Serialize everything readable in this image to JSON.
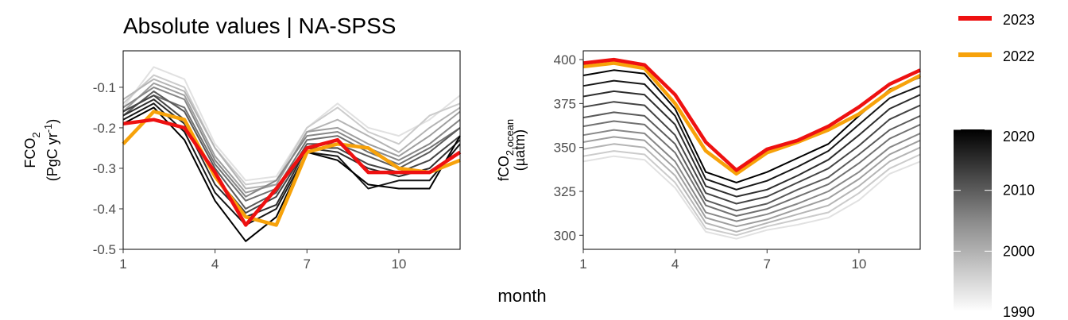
{
  "title": "Absolute values | NA-SPSS",
  "shared_xlabel": "month",
  "chart_data": [
    {
      "type": "line",
      "ylabel_main": "FCO",
      "ylabel_main_sub": "2",
      "ylabel_unit_pre": "(PgC yr",
      "ylabel_unit_sup": "-1",
      "ylabel_unit_post": ")",
      "xlim": [
        1,
        12
      ],
      "ylim": [
        -0.5,
        -0.01
      ],
      "x_ticks": [
        1,
        4,
        7,
        10
      ],
      "y_ticks": [
        -0.5,
        -0.4,
        -0.3,
        -0.2,
        -0.1
      ],
      "y_tick_labels": [
        "-0.5",
        "-0.4",
        "-0.3",
        "-0.2",
        "-0.1"
      ],
      "x": [
        1,
        2,
        3,
        4,
        5,
        6,
        7,
        8,
        9,
        10,
        11,
        12
      ],
      "background_series": [
        {
          "year": 1990,
          "values": [
            -0.15,
            -0.05,
            -0.08,
            -0.24,
            -0.33,
            -0.32,
            -0.2,
            -0.14,
            -0.2,
            -0.22,
            -0.18,
            -0.12
          ]
        },
        {
          "year": 1993,
          "values": [
            -0.14,
            -0.07,
            -0.1,
            -0.25,
            -0.34,
            -0.33,
            -0.2,
            -0.15,
            -0.21,
            -0.24,
            -0.17,
            -0.14
          ]
        },
        {
          "year": 1996,
          "values": [
            -0.13,
            -0.08,
            -0.11,
            -0.25,
            -0.35,
            -0.34,
            -0.21,
            -0.18,
            -0.22,
            -0.26,
            -0.2,
            -0.15
          ]
        },
        {
          "year": 1999,
          "values": [
            -0.16,
            -0.09,
            -0.12,
            -0.27,
            -0.36,
            -0.34,
            -0.21,
            -0.2,
            -0.24,
            -0.27,
            -0.22,
            -0.16
          ]
        },
        {
          "year": 2002,
          "values": [
            -0.15,
            -0.1,
            -0.13,
            -0.28,
            -0.37,
            -0.33,
            -0.22,
            -0.21,
            -0.25,
            -0.28,
            -0.24,
            -0.18
          ]
        },
        {
          "year": 2005,
          "values": [
            -0.16,
            -0.12,
            -0.15,
            -0.29,
            -0.38,
            -0.35,
            -0.23,
            -0.22,
            -0.26,
            -0.29,
            -0.25,
            -0.2
          ]
        },
        {
          "year": 2008,
          "values": [
            -0.17,
            -0.11,
            -0.16,
            -0.3,
            -0.4,
            -0.36,
            -0.24,
            -0.24,
            -0.27,
            -0.3,
            -0.26,
            -0.2
          ]
        },
        {
          "year": 2011,
          "values": [
            -0.16,
            -0.12,
            -0.18,
            -0.32,
            -0.41,
            -0.37,
            -0.25,
            -0.25,
            -0.29,
            -0.31,
            -0.28,
            -0.22
          ]
        },
        {
          "year": 2014,
          "values": [
            -0.17,
            -0.13,
            -0.19,
            -0.34,
            -0.42,
            -0.39,
            -0.25,
            -0.26,
            -0.3,
            -0.32,
            -0.3,
            -0.23
          ]
        },
        {
          "year": 2017,
          "values": [
            -0.18,
            -0.14,
            -0.21,
            -0.36,
            -0.44,
            -0.4,
            -0.26,
            -0.27,
            -0.35,
            -0.33,
            -0.33,
            -0.24
          ]
        },
        {
          "year": 2020,
          "values": [
            -0.19,
            -0.15,
            -0.23,
            -0.38,
            -0.48,
            -0.42,
            -0.26,
            -0.28,
            -0.34,
            -0.35,
            -0.35,
            -0.22
          ]
        }
      ],
      "highlight_series": [
        {
          "name": "2022",
          "values": [
            -0.24,
            -0.16,
            -0.18,
            -0.32,
            -0.42,
            -0.44,
            -0.26,
            -0.24,
            -0.25,
            -0.3,
            -0.31,
            -0.28
          ]
        },
        {
          "name": "2023",
          "values": [
            -0.19,
            -0.18,
            -0.2,
            -0.31,
            -0.44,
            -0.35,
            -0.25,
            -0.23,
            -0.31,
            -0.31,
            -0.31,
            -0.26
          ]
        }
      ]
    },
    {
      "type": "line",
      "ylabel_main": "fCO",
      "ylabel_main_sub": "2,ocean",
      "ylabel_unit": "(µatm)",
      "xlim": [
        1,
        12
      ],
      "ylim": [
        292,
        405
      ],
      "x_ticks": [
        1,
        4,
        7,
        10
      ],
      "y_ticks": [
        300,
        325,
        350,
        375,
        400
      ],
      "y_tick_labels": [
        "300",
        "325",
        "350",
        "375",
        "400"
      ],
      "x": [
        1,
        2,
        3,
        4,
        5,
        6,
        7,
        8,
        9,
        10,
        11,
        12
      ],
      "background_series": [
        {
          "year": 1990,
          "values": [
            342,
            345,
            343,
            327,
            302,
            298,
            303,
            306,
            310,
            320,
            335,
            342
          ]
        },
        {
          "year": 1993,
          "values": [
            345,
            348,
            346,
            330,
            304,
            300,
            305,
            309,
            313,
            324,
            338,
            346
          ]
        },
        {
          "year": 1996,
          "values": [
            349,
            352,
            350,
            334,
            307,
            302,
            307,
            312,
            317,
            328,
            342,
            350
          ]
        },
        {
          "year": 1999,
          "values": [
            353,
            356,
            354,
            338,
            310,
            305,
            309,
            315,
            321,
            332,
            346,
            354
          ]
        },
        {
          "year": 2002,
          "values": [
            357,
            360,
            358,
            342,
            313,
            308,
            312,
            318,
            325,
            336,
            350,
            358
          ]
        },
        {
          "year": 2005,
          "values": [
            362,
            365,
            363,
            347,
            317,
            311,
            315,
            322,
            329,
            341,
            355,
            363
          ]
        },
        {
          "year": 2008,
          "values": [
            367,
            370,
            368,
            352,
            320,
            314,
            318,
            326,
            333,
            346,
            360,
            368
          ]
        },
        {
          "year": 2011,
          "values": [
            373,
            376,
            374,
            357,
            324,
            318,
            322,
            330,
            338,
            351,
            366,
            374
          ]
        },
        {
          "year": 2014,
          "values": [
            379,
            382,
            380,
            363,
            328,
            322,
            326,
            334,
            343,
            357,
            372,
            380
          ]
        },
        {
          "year": 2017,
          "values": [
            385,
            388,
            386,
            368,
            332,
            326,
            331,
            339,
            348,
            363,
            378,
            385
          ]
        },
        {
          "year": 2020,
          "values": [
            391,
            394,
            392,
            372,
            336,
            330,
            336,
            344,
            352,
            368,
            383,
            390
          ]
        }
      ],
      "highlight_series": [
        {
          "name": "2022",
          "values": [
            396,
            398,
            395,
            375,
            348,
            335,
            347,
            353,
            360,
            369,
            382,
            391
          ]
        },
        {
          "name": "2023",
          "values": [
            398,
            400,
            397,
            380,
            353,
            337,
            349,
            354,
            362,
            373,
            386,
            394
          ]
        }
      ]
    }
  ],
  "legend": {
    "items": [
      {
        "label": "2023",
        "color": "#ee1111"
      },
      {
        "label": "2022",
        "color": "#f7a20a"
      }
    ],
    "colorbar": {
      "ticks": [
        1990,
        2000,
        2010,
        2020
      ],
      "tick_labels": [
        "1990",
        "2000",
        "2010",
        "2020"
      ],
      "range": [
        1990,
        2020
      ],
      "low_color": "#ffffff",
      "high_color": "#000000"
    }
  }
}
